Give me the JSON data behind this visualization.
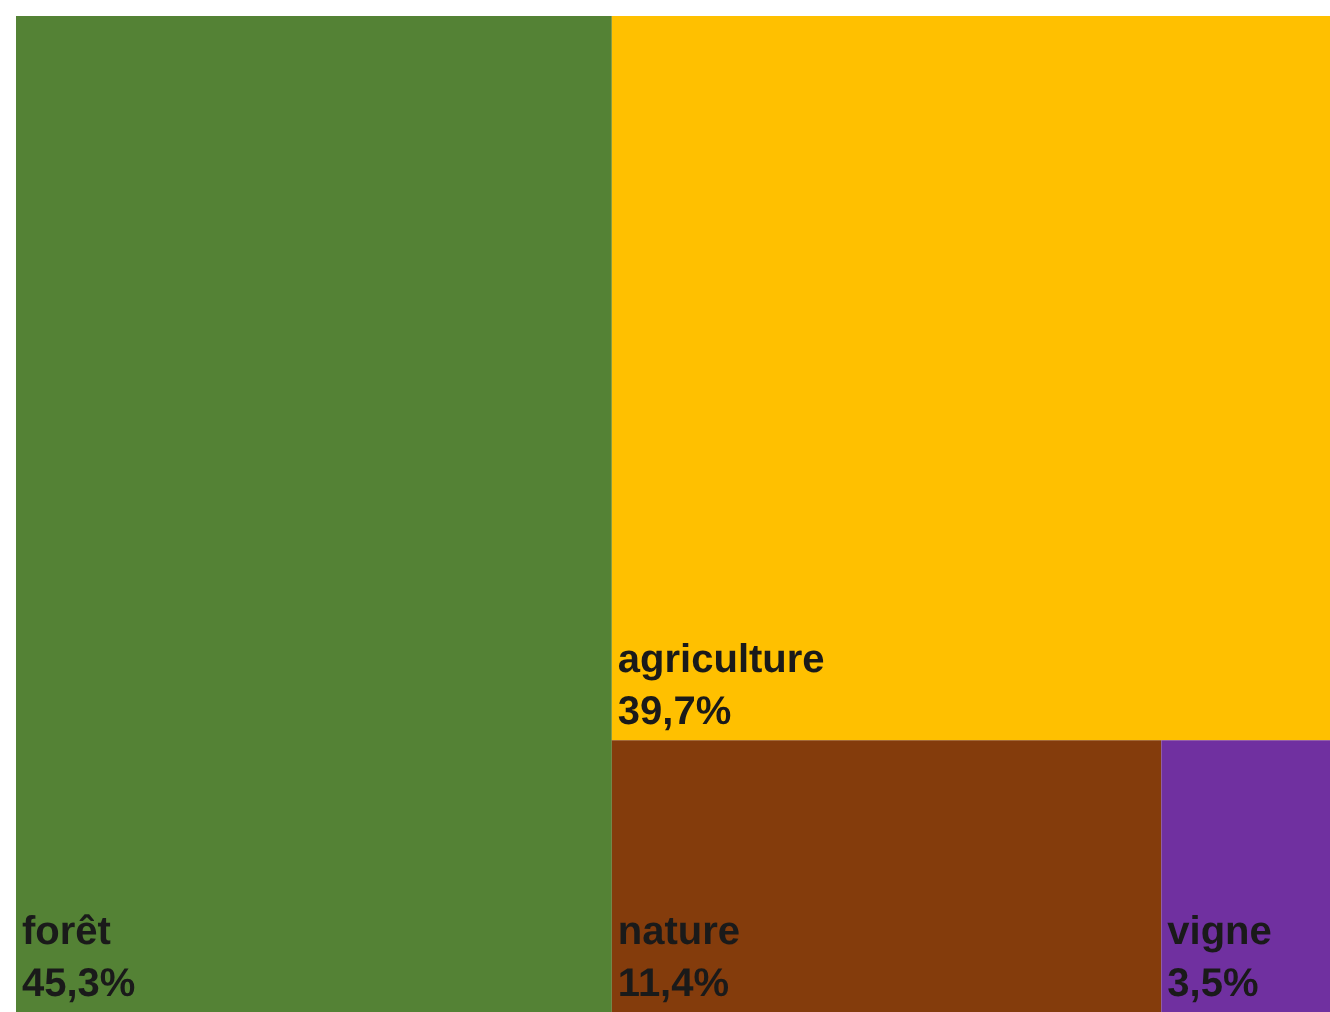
{
  "chart_data": {
    "type": "other",
    "categories": [
      "forêt",
      "agriculture",
      "nature",
      "vigne"
    ],
    "values": [
      45.3,
      39.7,
      11.4,
      3.5
    ],
    "value_labels": [
      "45,3%",
      "39,7%",
      "11,4%",
      "3,5%"
    ],
    "colors": [
      "#548235",
      "#ffc000",
      "#843c0c",
      "#7030a0"
    ]
  }
}
